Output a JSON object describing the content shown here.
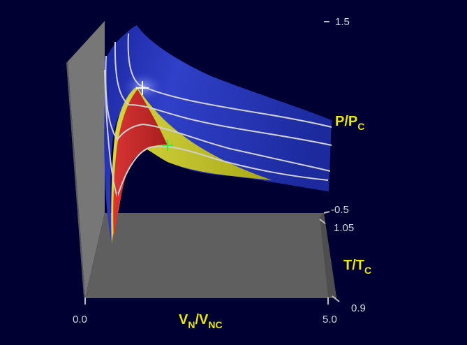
{
  "chart_data": {
    "type": "surface",
    "title": "",
    "xlabel": {
      "main": "V",
      "sub1": "N",
      "slash": "/V",
      "sub2": "NC"
    },
    "ylabel": {
      "main": "P/P",
      "sub": "C"
    },
    "zlabel": {
      "main": "T/T",
      "sub": "C"
    },
    "x_ticks": [
      "0.0",
      "5.0"
    ],
    "y_ticks": [
      "1.5",
      "-0.5"
    ],
    "t_ticks": [
      "1.05",
      "0.9"
    ],
    "xlim": [
      0.0,
      5.0
    ],
    "ylim": [
      -0.5,
      1.5
    ],
    "tlim": [
      0.9,
      1.05
    ],
    "isotherms": [
      {
        "T": 1.05,
        "points": [
          [
            0.33,
            1.27
          ],
          [
            0.5,
            1.18
          ],
          [
            1.0,
            1.02
          ],
          [
            1.5,
            0.96
          ],
          [
            2.0,
            0.9
          ],
          [
            3.0,
            0.8
          ],
          [
            4.0,
            0.7
          ],
          [
            5.0,
            0.63
          ]
        ]
      },
      {
        "T": 1.0,
        "points": [
          [
            0.33,
            1.17
          ],
          [
            0.5,
            1.05
          ],
          [
            1.0,
            1.0
          ],
          [
            1.5,
            0.96
          ],
          [
            2.0,
            0.89
          ],
          [
            3.0,
            0.78
          ],
          [
            4.0,
            0.69
          ],
          [
            5.0,
            0.6
          ]
        ]
      },
      {
        "T": 0.95,
        "points": [
          [
            0.33,
            0.88
          ],
          [
            0.5,
            0.7
          ],
          [
            0.8,
            0.71
          ],
          [
            1.0,
            0.72
          ],
          [
            1.5,
            0.66
          ],
          [
            2.0,
            0.6
          ],
          [
            3.0,
            0.48
          ],
          [
            4.0,
            0.39
          ],
          [
            5.0,
            0.32
          ]
        ]
      },
      {
        "T": 0.9,
        "points": [
          [
            0.38,
            0.45
          ],
          [
            0.5,
            0.3
          ],
          [
            0.7,
            0.28
          ],
          [
            1.0,
            0.3
          ],
          [
            1.5,
            0.36
          ],
          [
            2.0,
            0.38
          ],
          [
            3.0,
            0.32
          ],
          [
            4.0,
            0.25
          ],
          [
            5.0,
            0.2
          ]
        ]
      }
    ],
    "markers": [
      {
        "name": "critical point",
        "color": "#ffffff",
        "V": 1.0,
        "T": 1.0,
        "P": 1.0
      },
      {
        "name": "spinodal point",
        "color": "#33ee33",
        "V": 1.9,
        "T": 0.9,
        "P": 0.38
      },
      {
        "name": "spinodal point",
        "color": "#ff2222",
        "V": 0.6,
        "T": 0.9,
        "P": 0.2
      }
    ],
    "regions": [
      {
        "name": "single phase",
        "color": "#2030b0"
      },
      {
        "name": "metastable",
        "color": "#c8c828"
      },
      {
        "name": "unstable",
        "color": "#c42828"
      }
    ],
    "colors": {
      "background": "#000033",
      "wall": "#757575",
      "floor": "#5e5e5e",
      "curve": "#d0d0d0",
      "label": "#e8e800"
    }
  }
}
